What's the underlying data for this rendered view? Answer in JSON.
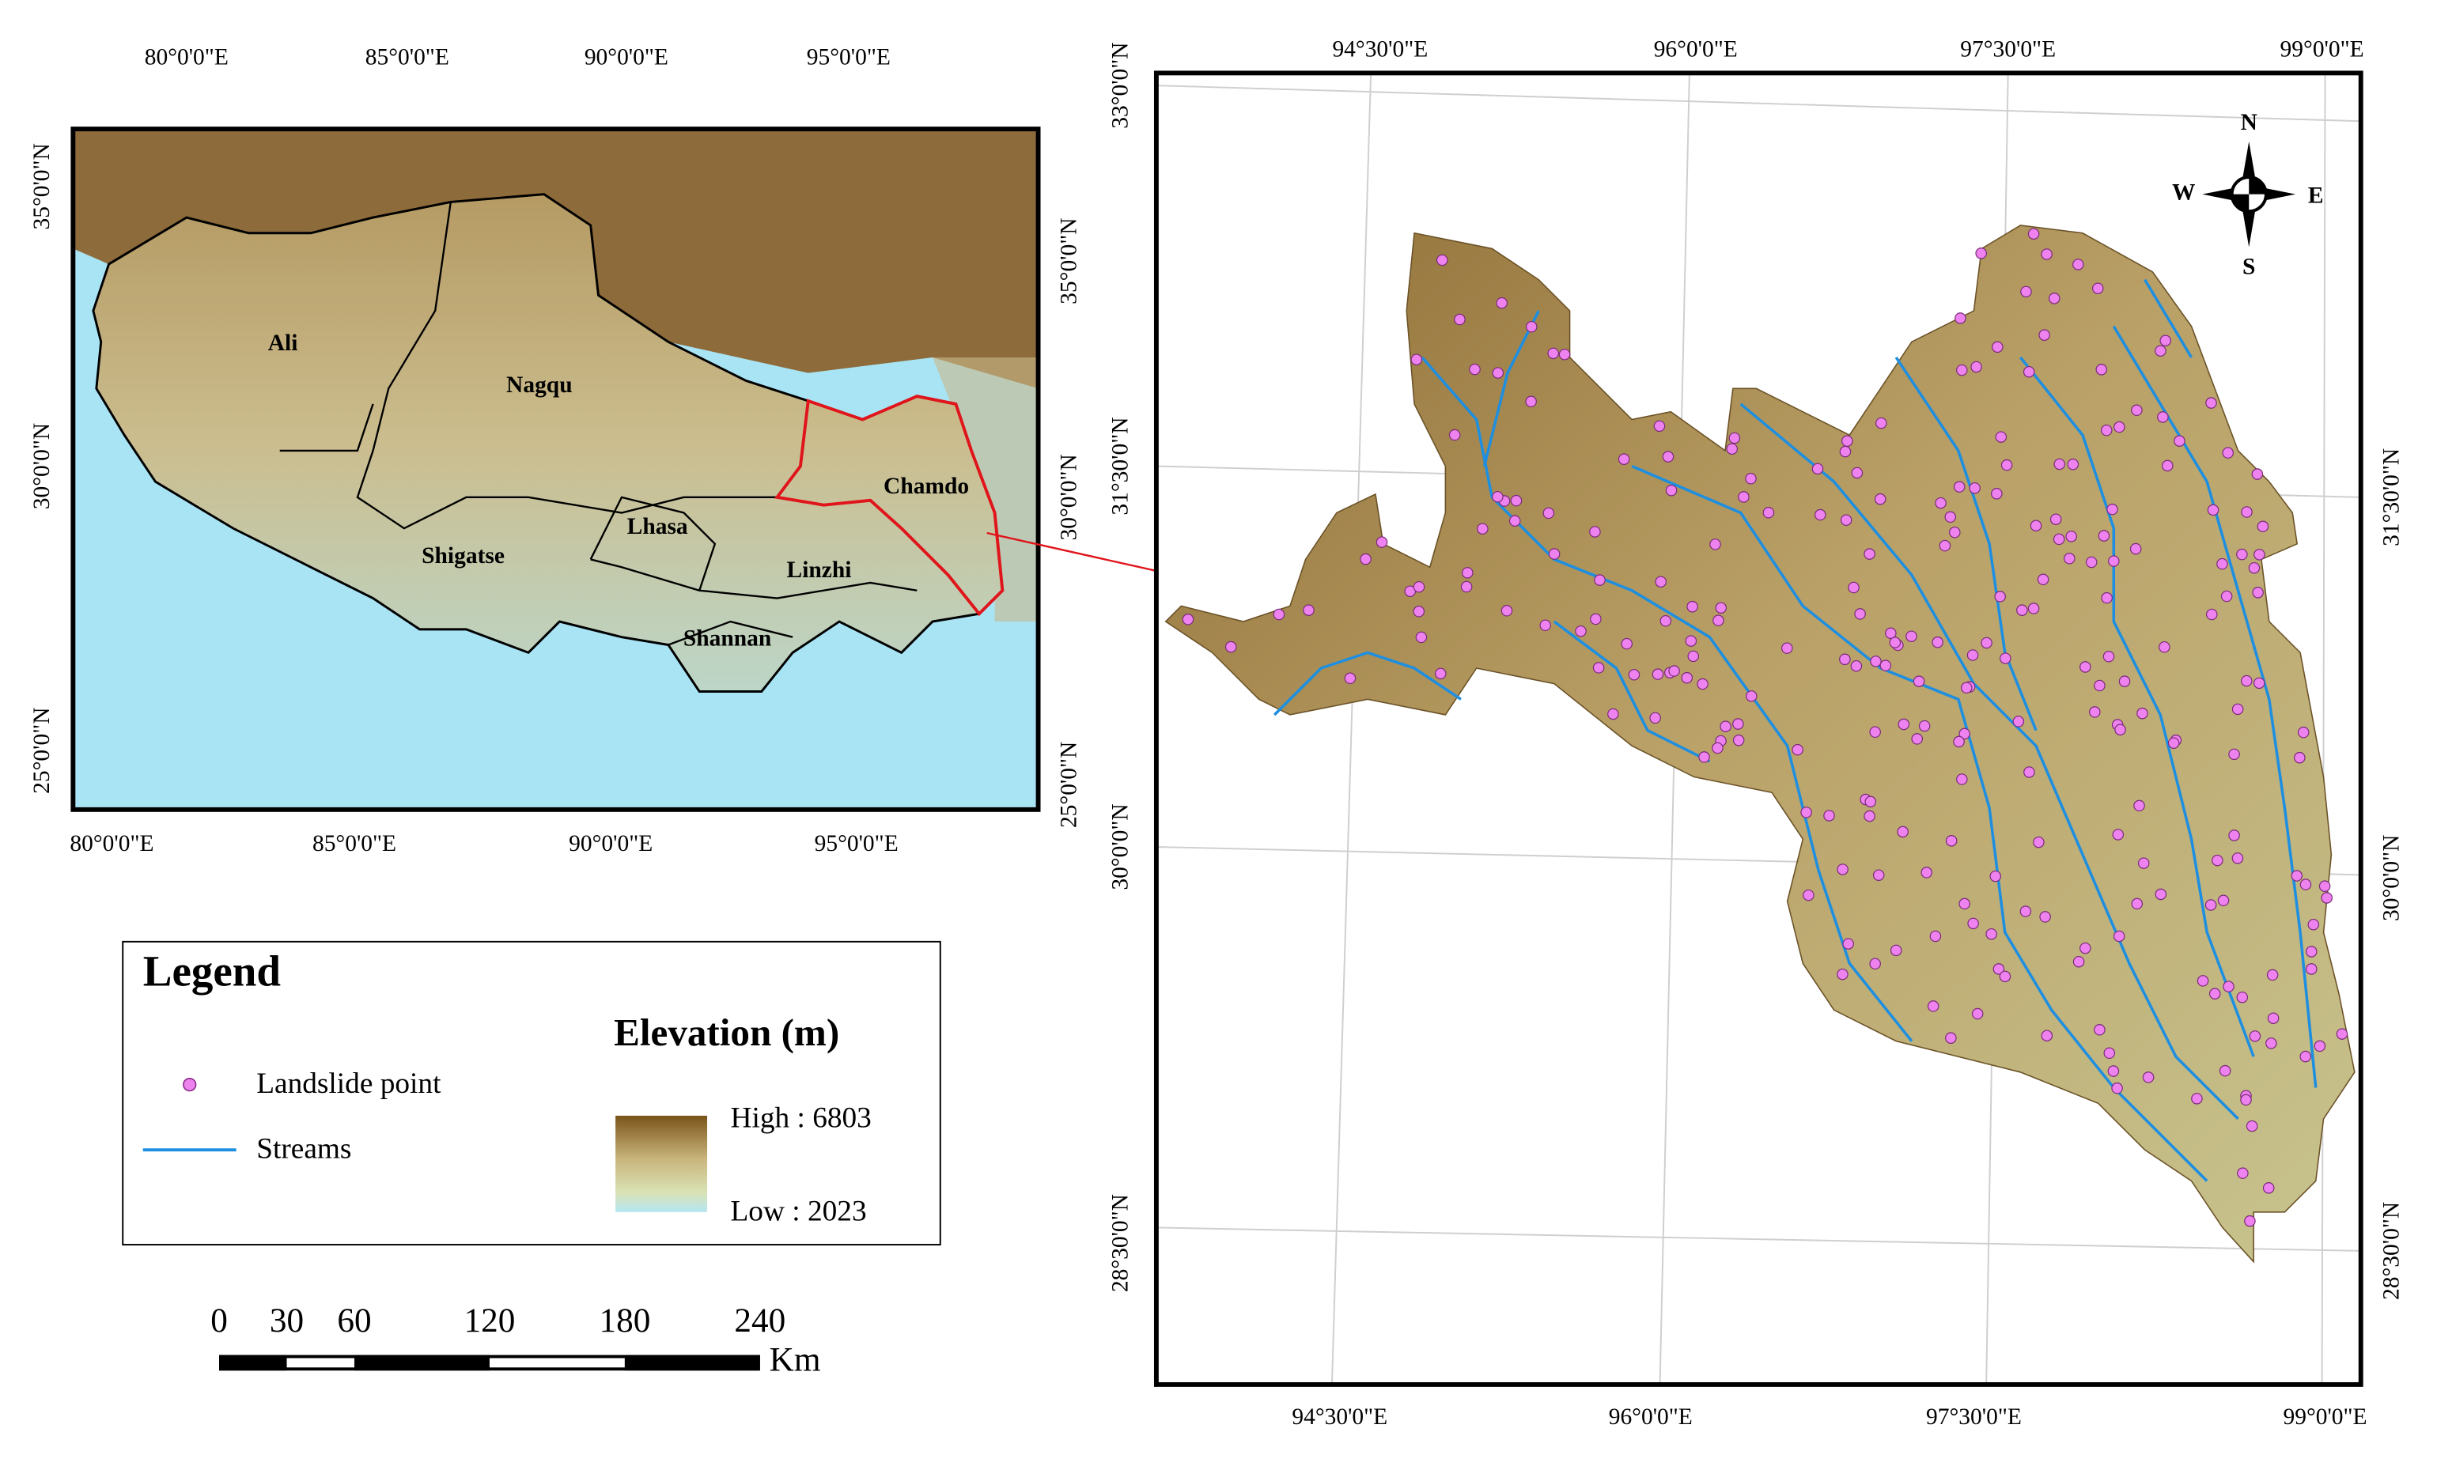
{
  "overview_map": {
    "top_ticks": [
      "80°0'0\"E",
      "85°0'0\"E",
      "90°0'0\"E",
      "95°0'0\"E"
    ],
    "bottom_ticks": [
      "80°0'0\"E",
      "85°0'0\"E",
      "90°0'0\"E",
      "95°0'0\"E"
    ],
    "left_ticks": [
      "35°0'0\"N",
      "30°0'0\"N",
      "25°0'0\"N"
    ],
    "right_ticks": [
      "35°0'0\"N",
      "30°0'0\"N",
      "25°0'0\"N"
    ],
    "regions": [
      "Ali",
      "Nagqu",
      "Chamdo",
      "Lhasa",
      "Shigatse",
      "Linzhi",
      "Shannan"
    ]
  },
  "legend": {
    "title": "Legend",
    "items": [
      {
        "label": "Landslide point"
      },
      {
        "label": "Streams"
      }
    ],
    "elevation": {
      "title": "Elevation (m)",
      "high": "High : 6803",
      "low": "Low : 2023"
    }
  },
  "scale_bar": {
    "ticks": [
      0,
      30,
      60,
      120,
      180,
      240
    ],
    "unit": "Km"
  },
  "study_map": {
    "top_ticks": [
      "94°30'0\"E",
      "96°0'0\"E",
      "97°30'0\"E",
      "99°0'0\"E"
    ],
    "bottom_ticks": [
      "94°30'0\"E",
      "96°0'0\"E",
      "97°30'0\"E",
      "99°0'0\"E"
    ],
    "left_ticks": [
      "33°0'0\"N",
      "31°30'0\"N",
      "30°0'0\"N",
      "28°30'0\"N"
    ],
    "right_ticks": [
      "31°30'0\"N",
      "30°0'0\"N",
      "28°30'0\"N"
    ],
    "compass": {
      "n": "N",
      "s": "S",
      "w": "W",
      "e": "E"
    }
  }
}
